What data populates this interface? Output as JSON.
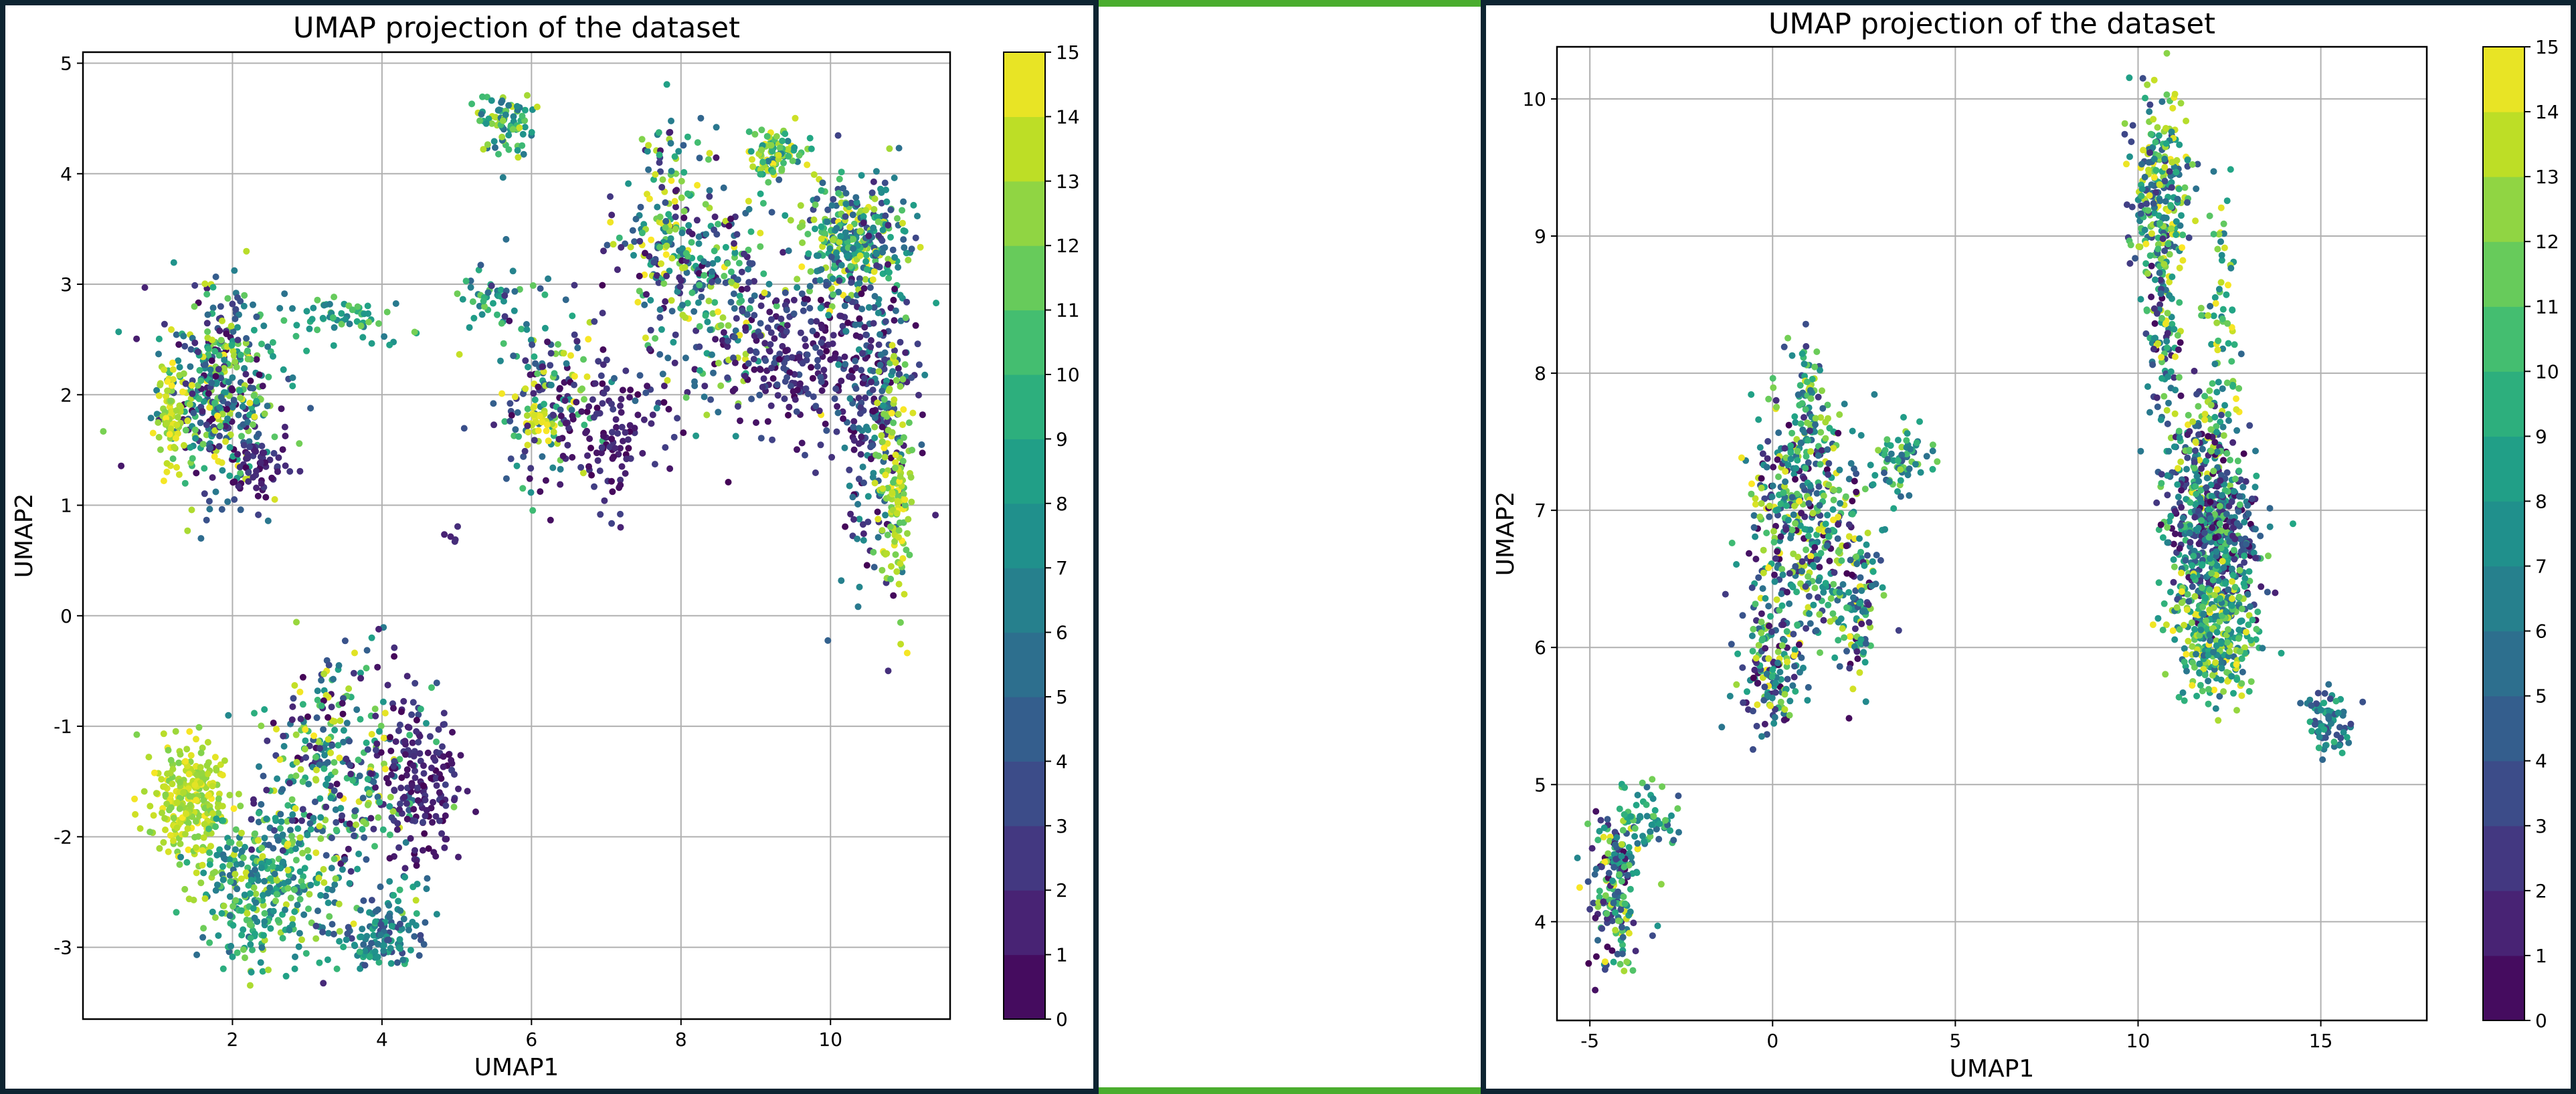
{
  "colors": {
    "grid": "#b0b0b0",
    "axis": "#000000",
    "frame": "#0d2431",
    "rule": "#4aad2e"
  },
  "chart_data": [
    {
      "type": "scatter",
      "title": "UMAP projection of the dataset",
      "xlabel": "UMAP1",
      "ylabel": "UMAP2",
      "xlim": [
        0.0,
        11.6
      ],
      "ylim": [
        -3.65,
        5.1
      ],
      "xticks": [
        2,
        4,
        6,
        8,
        10
      ],
      "yticks": [
        -3,
        -2,
        -1,
        0,
        1,
        2,
        3,
        4,
        5
      ],
      "grid": true,
      "colormap": "viridis",
      "colorbar": {
        "min": 0,
        "max": 15,
        "levels": 15,
        "ticks": [
          0,
          1,
          2,
          3,
          4,
          5,
          6,
          7,
          8,
          9,
          10,
          11,
          12,
          13,
          14,
          15
        ]
      },
      "clusters": [
        {
          "cx": 1.8,
          "cy": 2.05,
          "sx": 0.38,
          "sy": 0.45,
          "n": 420,
          "cmin": 0,
          "cmax": 15
        },
        {
          "cx": 1.15,
          "cy": 1.8,
          "sx": 0.12,
          "sy": 0.25,
          "n": 80,
          "cmin": 12,
          "cmax": 15
        },
        {
          "cx": 2.35,
          "cy": 1.35,
          "sx": 0.2,
          "sy": 0.15,
          "n": 60,
          "cmin": 0,
          "cmax": 3
        },
        {
          "cx": 3.5,
          "cy": 2.7,
          "sx": 0.45,
          "sy": 0.09,
          "n": 60,
          "cmin": 6,
          "cmax": 12
        },
        {
          "cx": 5.65,
          "cy": 4.45,
          "sx": 0.2,
          "sy": 0.15,
          "n": 80,
          "cmin": 5,
          "cmax": 14
        },
        {
          "cx": 5.5,
          "cy": 2.9,
          "sx": 0.3,
          "sy": 0.12,
          "n": 40,
          "cmin": 4,
          "cmax": 12
        },
        {
          "cx": 6.2,
          "cy": 2.0,
          "sx": 0.35,
          "sy": 0.4,
          "n": 150,
          "cmin": 0,
          "cmax": 15
        },
        {
          "cx": 6.1,
          "cy": 1.75,
          "sx": 0.12,
          "sy": 0.07,
          "n": 30,
          "cmin": 13,
          "cmax": 15
        },
        {
          "cx": 7.1,
          "cy": 1.7,
          "sx": 0.45,
          "sy": 0.35,
          "n": 130,
          "cmin": 0,
          "cmax": 3
        },
        {
          "cx": 7.8,
          "cy": 3.45,
          "sx": 0.35,
          "sy": 0.5,
          "n": 200,
          "cmin": 0,
          "cmax": 15
        },
        {
          "cx": 8.6,
          "cy": 2.9,
          "sx": 0.45,
          "sy": 0.5,
          "n": 220,
          "cmin": 0,
          "cmax": 15
        },
        {
          "cx": 9.25,
          "cy": 4.2,
          "sx": 0.2,
          "sy": 0.12,
          "n": 90,
          "cmin": 6,
          "cmax": 15
        },
        {
          "cx": 9.6,
          "cy": 2.3,
          "sx": 0.45,
          "sy": 0.3,
          "n": 220,
          "cmin": 0,
          "cmax": 4
        },
        {
          "cx": 10.3,
          "cy": 3.4,
          "sx": 0.35,
          "sy": 0.25,
          "n": 300,
          "cmin": 3,
          "cmax": 15
        },
        {
          "cx": 10.6,
          "cy": 2.0,
          "sx": 0.28,
          "sy": 0.8,
          "n": 280,
          "cmin": 0,
          "cmax": 8
        },
        {
          "cx": 10.85,
          "cy": 1.2,
          "sx": 0.12,
          "sy": 0.55,
          "n": 140,
          "cmin": 11,
          "cmax": 15
        },
        {
          "cx": 4.95,
          "cy": 0.7,
          "sx": 0.05,
          "sy": 0.06,
          "n": 5,
          "cmin": 0,
          "cmax": 2
        },
        {
          "cx": 1.4,
          "cy": -1.7,
          "sx": 0.25,
          "sy": 0.25,
          "n": 260,
          "cmin": 12,
          "cmax": 15
        },
        {
          "cx": 2.4,
          "cy": -2.45,
          "sx": 0.45,
          "sy": 0.35,
          "n": 320,
          "cmin": 5,
          "cmax": 14
        },
        {
          "cx": 3.4,
          "cy": -1.5,
          "sx": 0.55,
          "sy": 0.55,
          "n": 380,
          "cmin": 0,
          "cmax": 15
        },
        {
          "cx": 4.5,
          "cy": -1.5,
          "sx": 0.3,
          "sy": 0.4,
          "n": 160,
          "cmin": 0,
          "cmax": 3
        },
        {
          "cx": 4.0,
          "cy": -2.9,
          "sx": 0.3,
          "sy": 0.18,
          "n": 130,
          "cmin": 3,
          "cmax": 10
        }
      ]
    },
    {
      "type": "scatter",
      "title": "UMAP projection of the dataset",
      "xlabel": "UMAP1",
      "ylabel": "UMAP2",
      "xlim": [
        -5.9,
        17.9
      ],
      "ylim": [
        3.28,
        10.38
      ],
      "xticks": [
        -5,
        0,
        5,
        10,
        15
      ],
      "yticks": [
        4,
        5,
        6,
        7,
        8,
        9,
        10
      ],
      "grid": true,
      "colormap": "viridis",
      "colorbar": {
        "min": 0,
        "max": 15,
        "levels": 15,
        "ticks": [
          0,
          1,
          2,
          3,
          4,
          5,
          6,
          7,
          8,
          9,
          10,
          11,
          12,
          13,
          14,
          15
        ]
      },
      "clusters": [
        {
          "cx": -4.3,
          "cy": 4.25,
          "sx": 0.35,
          "sy": 0.28,
          "n": 180,
          "cmin": 0,
          "cmax": 15
        },
        {
          "cx": -3.4,
          "cy": 4.75,
          "sx": 0.35,
          "sy": 0.12,
          "n": 60,
          "cmin": 4,
          "cmax": 12
        },
        {
          "cx": 0.0,
          "cy": 5.85,
          "sx": 0.45,
          "sy": 0.25,
          "n": 160,
          "cmin": 0,
          "cmax": 15
        },
        {
          "cx": 0.9,
          "cy": 6.9,
          "sx": 0.8,
          "sy": 0.45,
          "n": 420,
          "cmin": 0,
          "cmax": 15
        },
        {
          "cx": 1.0,
          "cy": 7.7,
          "sx": 0.2,
          "sy": 0.28,
          "n": 80,
          "cmin": 2,
          "cmax": 14
        },
        {
          "cx": 2.3,
          "cy": 6.3,
          "sx": 0.3,
          "sy": 0.3,
          "n": 100,
          "cmin": 0,
          "cmax": 15
        },
        {
          "cx": 3.5,
          "cy": 7.35,
          "sx": 0.45,
          "sy": 0.12,
          "n": 70,
          "cmin": 4,
          "cmax": 13
        },
        {
          "cx": 10.6,
          "cy": 9.35,
          "sx": 0.4,
          "sy": 0.35,
          "n": 260,
          "cmin": 2,
          "cmax": 15
        },
        {
          "cx": 10.7,
          "cy": 8.3,
          "sx": 0.25,
          "sy": 0.35,
          "n": 100,
          "cmin": 0,
          "cmax": 15
        },
        {
          "cx": 12.3,
          "cy": 8.4,
          "sx": 0.3,
          "sy": 0.45,
          "n": 80,
          "cmin": 5,
          "cmax": 15
        },
        {
          "cx": 11.6,
          "cy": 7.4,
          "sx": 0.45,
          "sy": 0.25,
          "n": 140,
          "cmin": 0,
          "cmax": 15
        },
        {
          "cx": 12.1,
          "cy": 6.8,
          "sx": 0.6,
          "sy": 0.3,
          "n": 480,
          "cmin": 0,
          "cmax": 12
        },
        {
          "cx": 12.1,
          "cy": 6.1,
          "sx": 0.55,
          "sy": 0.25,
          "n": 300,
          "cmin": 5,
          "cmax": 15
        },
        {
          "cx": 15.2,
          "cy": 5.45,
          "sx": 0.25,
          "sy": 0.12,
          "n": 80,
          "cmin": 3,
          "cmax": 10
        }
      ]
    }
  ]
}
